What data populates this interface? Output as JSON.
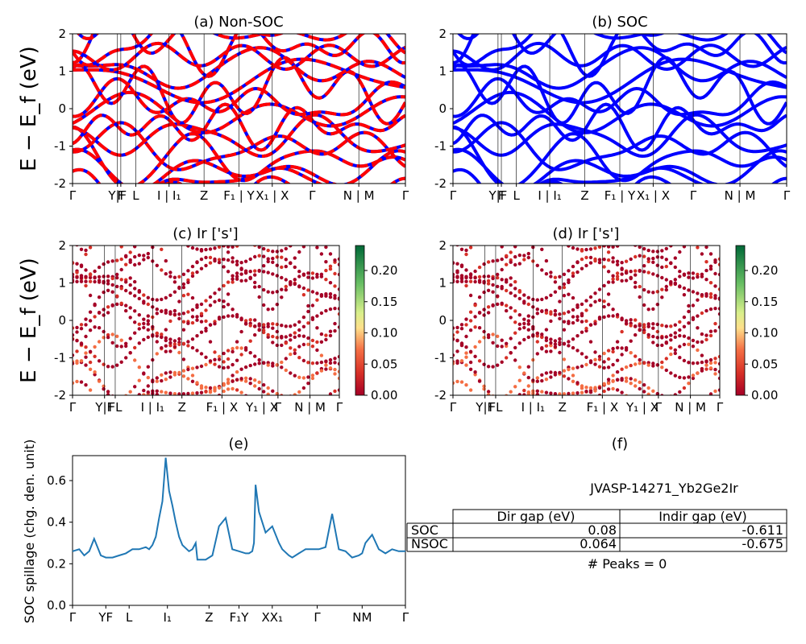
{
  "chart_data": [
    {
      "id": "a",
      "type": "line",
      "title": "(a) Non-SOC",
      "ylabel": "E − E_f (eV)",
      "ylim": [
        -2,
        2
      ],
      "yticks": [
        -2,
        -1,
        0,
        1,
        2
      ],
      "kpath_labels": [
        "Γ",
        "Y|F",
        "F",
        "L",
        "I | I₁",
        "Z",
        "F₁ | Y",
        "X₁ | X",
        "Γ",
        "N | M",
        "Γ"
      ],
      "series": [
        {
          "color": "#ff0000",
          "values": "band structure, spin-up (dashed)"
        },
        {
          "color": "#0000ff",
          "values": "band structure, spin-down"
        }
      ]
    },
    {
      "id": "b",
      "type": "line",
      "title": "(b) SOC",
      "ylim": [
        -2,
        2
      ],
      "yticks": [
        -2,
        -1,
        0,
        1,
        2
      ],
      "kpath_labels": [
        "Γ",
        "Y|F",
        "F",
        "L",
        "I | I₁",
        "Z",
        "F₁ | Y",
        "X₁ | X",
        "Γ",
        "N | M",
        "Γ"
      ],
      "series": [
        {
          "color": "#0000ff"
        }
      ]
    },
    {
      "id": "c",
      "type": "scatter",
      "title": "(c)  Ir ['s']",
      "ylabel": "E − E_f (eV)",
      "ylim": [
        -2,
        2
      ],
      "colorbar": {
        "min": 0.0,
        "max": 0.24,
        "ticks": [
          "0.00",
          "0.05",
          "0.10",
          "0.15",
          "0.20"
        ],
        "cmap": "RdYlGn"
      },
      "kpath_labels": [
        "Γ",
        "Y|F",
        "FL",
        "I | I₁",
        "Z",
        "F₁ | X",
        "Y₁ | X",
        "Γ",
        "N | M",
        "Γ"
      ]
    },
    {
      "id": "d",
      "type": "scatter",
      "title": "(d) Ir ['s']",
      "ylim": [
        -2,
        2
      ],
      "colorbar": {
        "min": 0.0,
        "max": 0.24,
        "ticks": [
          "0.00",
          "0.05",
          "0.10",
          "0.15",
          "0.20"
        ],
        "cmap": "RdYlGn"
      },
      "kpath_labels": [
        "Γ",
        "Y|F",
        "FL",
        "I | I₁",
        "Z",
        "F₁ | X",
        "Y₁ | X",
        "Γ",
        "N | M",
        "Γ"
      ]
    },
    {
      "id": "e",
      "type": "line",
      "title": "(e)",
      "ylabel": "SOC spillage (chg. den. unit)",
      "ylim": [
        0,
        0.72
      ],
      "yticks": [
        "0.0",
        "0.2",
        "0.4",
        "0.6"
      ],
      "color": "#1f77b4",
      "kpath_labels": [
        "Γ",
        "YF",
        "L",
        "I₁",
        "Z",
        "F₁Y",
        "XX₁",
        "Γ",
        "NM",
        "Γ"
      ],
      "x": [
        0,
        0.02,
        0.035,
        0.05,
        0.065,
        0.075,
        0.085,
        0.1,
        0.12,
        0.14,
        0.16,
        0.18,
        0.2,
        0.22,
        0.23,
        0.24,
        0.25,
        0.26,
        0.27,
        0.28,
        0.29,
        0.3,
        0.31,
        0.32,
        0.33,
        0.35,
        0.36,
        0.37,
        0.375,
        0.385,
        0.4,
        0.42,
        0.44,
        0.46,
        0.48,
        0.5,
        0.52,
        0.53,
        0.54,
        0.545,
        0.55,
        0.56,
        0.58,
        0.6,
        0.62,
        0.63,
        0.65,
        0.66,
        0.67,
        0.68,
        0.69,
        0.7,
        0.72,
        0.74,
        0.76,
        0.78,
        0.8,
        0.82,
        0.84,
        0.86,
        0.87,
        0.88,
        0.9,
        0.92,
        0.94,
        0.96,
        0.98,
        1.0
      ],
      "values": [
        0.26,
        0.27,
        0.24,
        0.26,
        0.32,
        0.28,
        0.24,
        0.23,
        0.23,
        0.24,
        0.25,
        0.27,
        0.27,
        0.28,
        0.27,
        0.29,
        0.33,
        0.42,
        0.5,
        0.71,
        0.55,
        0.48,
        0.4,
        0.33,
        0.29,
        0.26,
        0.27,
        0.3,
        0.22,
        0.22,
        0.22,
        0.24,
        0.38,
        0.42,
        0.27,
        0.26,
        0.25,
        0.25,
        0.26,
        0.3,
        0.58,
        0.45,
        0.35,
        0.38,
        0.3,
        0.27,
        0.24,
        0.23,
        0.24,
        0.25,
        0.26,
        0.27,
        0.27,
        0.27,
        0.28,
        0.44,
        0.27,
        0.26,
        0.23,
        0.24,
        0.25,
        0.3,
        0.34,
        0.27,
        0.25,
        0.27,
        0.26,
        0.26
      ]
    }
  ],
  "panel_f": {
    "title": "(f)",
    "material": "JVASP-14271_Yb2Ge2Ir",
    "headers": [
      "Dir gap (eV)",
      "Indir gap (eV)"
    ],
    "rows": [
      {
        "label": "SOC",
        "dir": "0.08",
        "indir": "-0.611"
      },
      {
        "label": "NSOC",
        "dir": "0.064",
        "indir": "-0.675"
      }
    ],
    "peaks": "# Peaks = 0"
  }
}
